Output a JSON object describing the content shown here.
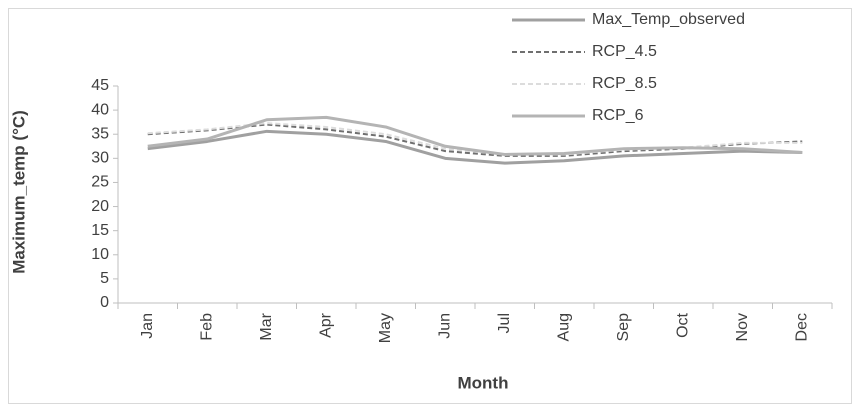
{
  "chart_data": {
    "type": "line",
    "xlabel": "Month",
    "ylabel": "Maximum_temp (°C)",
    "categories": [
      "Jan",
      "Feb",
      "Mar",
      "Apr",
      "May",
      "Jun",
      "Jul",
      "Aug",
      "Sep",
      "Oct",
      "Nov",
      "Dec"
    ],
    "ylim": [
      0,
      45
    ],
    "yticks": [
      0,
      5,
      10,
      15,
      20,
      25,
      30,
      35,
      40,
      45
    ],
    "legend": "top-right",
    "series": [
      {
        "name": "Max_Temp_observed",
        "color": "#a0a0a0",
        "dash": "none",
        "width": 3,
        "values": [
          32,
          33.5,
          35.6,
          35,
          33.5,
          30,
          29,
          29.5,
          30.5,
          31,
          31.5,
          31.2
        ]
      },
      {
        "name": "RCP_4.5",
        "color": "#6f6f6f",
        "dash": "5,3",
        "width": 2,
        "values": [
          35,
          35.8,
          37,
          36,
          34.5,
          31.5,
          30.5,
          30.5,
          31.5,
          32,
          33,
          33.5
        ]
      },
      {
        "name": "RCP_8.5",
        "color": "#dcdcdc",
        "dash": "5,3",
        "width": 2,
        "values": [
          35.2,
          36,
          37.3,
          36.5,
          35,
          32,
          30.8,
          30.8,
          31.8,
          32.2,
          33.2,
          33.2
        ]
      },
      {
        "name": "RCP_6",
        "color": "#b4b4b4",
        "dash": "none",
        "width": 3,
        "values": [
          32.5,
          34,
          38,
          38.5,
          36.5,
          32.5,
          30.8,
          31,
          32,
          32.2,
          32,
          31.2
        ]
      }
    ]
  }
}
